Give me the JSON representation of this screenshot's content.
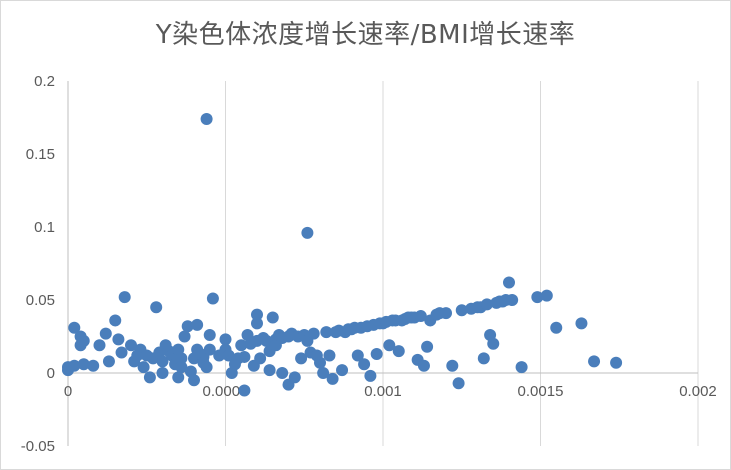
{
  "chart_data": {
    "type": "scatter",
    "title": "Y染色体浓度增长速率/BMI增长速率",
    "xlabel": "",
    "ylabel": "",
    "xlim": [
      0,
      0.002
    ],
    "ylim": [
      -0.05,
      0.2
    ],
    "x_ticks": [
      0,
      0.0005,
      0.001,
      0.0015,
      0.002
    ],
    "x_tick_labels": [
      "0",
      "0.0005",
      "0.001",
      "0.0015",
      "0.002"
    ],
    "y_ticks": [
      -0.05,
      0,
      0.05,
      0.1,
      0.15,
      0.2
    ],
    "y_tick_labels": [
      "-0.05",
      "0",
      "0.05",
      "0.1",
      "0.15",
      "0.2"
    ],
    "grid": "vertical",
    "legend": "none",
    "marker_color": "#4a7ebb",
    "gridline_color": "#d9d9d9",
    "axis_color": "#bfbfbf",
    "series": [
      {
        "name": "Y染色体浓度增长速率/BMI增长速率",
        "points": [
          [
            0.0,
            0.002
          ],
          [
            0.0,
            0.004
          ],
          [
            2e-05,
            0.005
          ],
          [
            2e-05,
            0.031
          ],
          [
            4e-05,
            0.025
          ],
          [
            4e-05,
            0.019
          ],
          [
            5e-05,
            0.022
          ],
          [
            5e-05,
            0.006
          ],
          [
            8e-05,
            0.005
          ],
          [
            0.0001,
            0.019
          ],
          [
            0.00012,
            0.027
          ],
          [
            0.00013,
            0.008
          ],
          [
            0.00015,
            0.036
          ],
          [
            0.00016,
            0.023
          ],
          [
            0.00017,
            0.014
          ],
          [
            0.00018,
            0.052
          ],
          [
            0.0002,
            0.019
          ],
          [
            0.00021,
            0.008
          ],
          [
            0.00022,
            0.012
          ],
          [
            0.00023,
            0.016
          ],
          [
            0.00024,
            0.004
          ],
          [
            0.00025,
            0.012
          ],
          [
            0.00026,
            -0.003
          ],
          [
            0.00027,
            0.01
          ],
          [
            0.00028,
            0.045
          ],
          [
            0.00029,
            0.014
          ],
          [
            0.0003,
            0.008
          ],
          [
            0.0003,
            0.0
          ],
          [
            0.00031,
            0.019
          ],
          [
            0.00032,
            0.015
          ],
          [
            0.00033,
            0.012
          ],
          [
            0.00034,
            0.006
          ],
          [
            0.00035,
            -0.003
          ],
          [
            0.00035,
            0.016
          ],
          [
            0.00036,
            0.01
          ],
          [
            0.00036,
            0.004
          ],
          [
            0.00037,
            0.025
          ],
          [
            0.00038,
            0.032
          ],
          [
            0.00039,
            0.001
          ],
          [
            0.0004,
            -0.005
          ],
          [
            0.0004,
            0.01
          ],
          [
            0.00041,
            0.033
          ],
          [
            0.00041,
            0.016
          ],
          [
            0.00042,
            0.013
          ],
          [
            0.00043,
            0.011
          ],
          [
            0.00043,
            0.007
          ],
          [
            0.00044,
            0.004
          ],
          [
            0.00044,
            0.174
          ],
          [
            0.00045,
            0.026
          ],
          [
            0.00045,
            0.016
          ],
          [
            0.00046,
            0.051
          ],
          [
            0.00048,
            0.012
          ],
          [
            0.0005,
            0.023
          ],
          [
            0.0005,
            0.016
          ],
          [
            0.00051,
            0.012
          ],
          [
            0.00052,
            0.0
          ],
          [
            0.00053,
            0.006
          ],
          [
            0.00054,
            0.01
          ],
          [
            0.00055,
            0.019
          ],
          [
            0.00056,
            -0.012
          ],
          [
            0.00056,
            0.011
          ],
          [
            0.00057,
            0.026
          ],
          [
            0.00058,
            0.02
          ],
          [
            0.00059,
            0.005
          ],
          [
            0.0006,
            0.022
          ],
          [
            0.0006,
            0.04
          ],
          [
            0.0006,
            0.034
          ],
          [
            0.00061,
            0.01
          ],
          [
            0.00062,
            0.024
          ],
          [
            0.00063,
            0.022
          ],
          [
            0.00064,
            0.015
          ],
          [
            0.00064,
            0.002
          ],
          [
            0.00065,
            0.038
          ],
          [
            0.00066,
            0.023
          ],
          [
            0.00066,
            0.019
          ],
          [
            0.00067,
            0.026
          ],
          [
            0.00068,
            0.0
          ],
          [
            0.00068,
            0.024
          ],
          [
            0.0007,
            -0.008
          ],
          [
            0.0007,
            0.025
          ],
          [
            0.00071,
            0.027
          ],
          [
            0.00072,
            -0.003
          ],
          [
            0.00073,
            0.025
          ],
          [
            0.00074,
            0.01
          ],
          [
            0.00075,
            0.026
          ],
          [
            0.00076,
            0.022
          ],
          [
            0.00076,
            0.096
          ],
          [
            0.00077,
            0.014
          ],
          [
            0.00078,
            0.027
          ],
          [
            0.00079,
            0.012
          ],
          [
            0.0008,
            0.007
          ],
          [
            0.00081,
            0.0
          ],
          [
            0.00082,
            0.028
          ],
          [
            0.00083,
            0.012
          ],
          [
            0.00084,
            -0.004
          ],
          [
            0.00085,
            0.028
          ],
          [
            0.00086,
            0.029
          ],
          [
            0.00087,
            0.002
          ],
          [
            0.00088,
            0.028
          ],
          [
            0.00089,
            0.03
          ],
          [
            0.0009,
            0.03
          ],
          [
            0.00091,
            0.031
          ],
          [
            0.00092,
            0.012
          ],
          [
            0.00093,
            0.031
          ],
          [
            0.00094,
            0.006
          ],
          [
            0.00095,
            0.032
          ],
          [
            0.00096,
            -0.002
          ],
          [
            0.00097,
            0.033
          ],
          [
            0.00098,
            0.013
          ],
          [
            0.00099,
            0.034
          ],
          [
            0.001,
            0.034
          ],
          [
            0.00101,
            0.035
          ],
          [
            0.00102,
            0.019
          ],
          [
            0.00103,
            0.036
          ],
          [
            0.00104,
            0.036
          ],
          [
            0.00105,
            0.015
          ],
          [
            0.00106,
            0.036
          ],
          [
            0.00107,
            0.037
          ],
          [
            0.00108,
            0.038
          ],
          [
            0.00109,
            0.038
          ],
          [
            0.0011,
            0.038
          ],
          [
            0.00111,
            0.009
          ],
          [
            0.00112,
            0.039
          ],
          [
            0.00113,
            0.005
          ],
          [
            0.00114,
            0.018
          ],
          [
            0.00115,
            0.036
          ],
          [
            0.00117,
            0.04
          ],
          [
            0.00118,
            0.041
          ],
          [
            0.0012,
            0.041
          ],
          [
            0.00122,
            0.005
          ],
          [
            0.00124,
            -0.007
          ],
          [
            0.00125,
            0.043
          ],
          [
            0.00128,
            0.044
          ],
          [
            0.0013,
            0.045
          ],
          [
            0.00131,
            0.045
          ],
          [
            0.00132,
            0.01
          ],
          [
            0.00133,
            0.047
          ],
          [
            0.00134,
            0.026
          ],
          [
            0.00135,
            0.02
          ],
          [
            0.00136,
            0.048
          ],
          [
            0.00137,
            0.049
          ],
          [
            0.00138,
            0.049
          ],
          [
            0.00139,
            0.05
          ],
          [
            0.0014,
            0.062
          ],
          [
            0.00141,
            0.05
          ],
          [
            0.00144,
            0.004
          ],
          [
            0.00149,
            0.052
          ],
          [
            0.00152,
            0.053
          ],
          [
            0.00155,
            0.031
          ],
          [
            0.00163,
            0.034
          ],
          [
            0.00167,
            0.008
          ],
          [
            0.00174,
            0.007
          ]
        ]
      }
    ]
  }
}
